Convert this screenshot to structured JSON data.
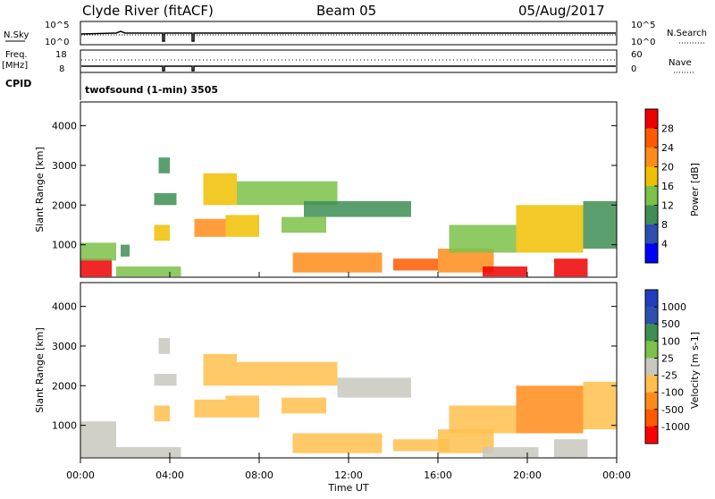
{
  "header": {
    "station": "Clyde River (fitACF)",
    "beam": "Beam 05",
    "date": "05/Aug/2017"
  },
  "top_panels": {
    "nsky_label": "N.Sky",
    "nsearch_label": "N.Search",
    "nsky_ticks": [
      "10^5",
      "10^0"
    ],
    "nsearch_ticks": [
      "10^5",
      "10^0"
    ],
    "freq_label_1": "Freq.",
    "freq_label_2": "[MHz]",
    "freq_ticks": [
      "18",
      "8"
    ],
    "nave_label": "Nave",
    "nave_ticks": [
      "60",
      "0"
    ],
    "cpid_label": "CPID",
    "cpid_text": "twofsound (1-min) 3505"
  },
  "chart_data": [
    {
      "type": "heatmap",
      "name": "power",
      "ylabel": "Slant Range [km]",
      "xlabel": "Time UT",
      "ylim": [
        180,
        4600
      ],
      "xlim": [
        0,
        24
      ],
      "yticks": [
        "1000",
        "2000",
        "3000",
        "4000"
      ],
      "xticks": [
        "00:00",
        "04:00",
        "08:00",
        "12:00",
        "16:00",
        "20:00",
        "00:00"
      ],
      "colorbar_label": "Power [dB]",
      "colorbar_ticks": [
        "4",
        "8",
        "12",
        "16",
        "20",
        "24",
        "28"
      ],
      "colorbar_range": [
        0,
        30
      ],
      "colors": [
        "#0000ff",
        "#2c4fb0",
        "#3f8e55",
        "#7bc14a",
        "#f0c000",
        "#ff8c1a",
        "#ff5a00",
        "#ee0000"
      ],
      "patches": [
        {
          "t0": 0.0,
          "t1": 1.4,
          "r0": 200,
          "r1": 650,
          "v": 28
        },
        {
          "t0": 0.0,
          "t1": 1.6,
          "r0": 600,
          "r1": 1050,
          "v": 14
        },
        {
          "t0": 1.6,
          "t1": 4.5,
          "r0": 200,
          "r1": 450,
          "v": 14
        },
        {
          "t0": 1.8,
          "t1": 2.2,
          "r0": 700,
          "r1": 1000,
          "v": 8
        },
        {
          "t0": 3.3,
          "t1": 4.0,
          "r0": 1100,
          "r1": 1500,
          "v": 18
        },
        {
          "t0": 3.3,
          "t1": 4.3,
          "r0": 2000,
          "r1": 2300,
          "v": 8
        },
        {
          "t0": 3.5,
          "t1": 4.0,
          "r0": 2800,
          "r1": 3200,
          "v": 10
        },
        {
          "t0": 5.1,
          "t1": 6.5,
          "r0": 1200,
          "r1": 1650,
          "v": 20
        },
        {
          "t0": 5.5,
          "t1": 7.0,
          "r0": 2000,
          "r1": 2800,
          "v": 16
        },
        {
          "t0": 6.5,
          "t1": 8.0,
          "r0": 1200,
          "r1": 1750,
          "v": 18
        },
        {
          "t0": 7.0,
          "t1": 11.5,
          "r0": 2000,
          "r1": 2600,
          "v": 12
        },
        {
          "t0": 9.0,
          "t1": 11.0,
          "r0": 1300,
          "r1": 1700,
          "v": 14
        },
        {
          "t0": 10.0,
          "t1": 14.8,
          "r0": 1700,
          "r1": 2100,
          "v": 8
        },
        {
          "t0": 9.5,
          "t1": 13.5,
          "r0": 300,
          "r1": 800,
          "v": 20
        },
        {
          "t0": 14.0,
          "t1": 16.0,
          "r0": 350,
          "r1": 650,
          "v": 24
        },
        {
          "t0": 16.0,
          "t1": 18.5,
          "r0": 300,
          "r1": 900,
          "v": 22
        },
        {
          "t0": 16.5,
          "t1": 19.5,
          "r0": 800,
          "r1": 1500,
          "v": 14
        },
        {
          "t0": 18.0,
          "t1": 20.0,
          "r0": 200,
          "r1": 450,
          "v": 28
        },
        {
          "t0": 19.5,
          "t1": 22.5,
          "r0": 800,
          "r1": 2000,
          "v": 16
        },
        {
          "t0": 21.2,
          "t1": 22.7,
          "r0": 200,
          "r1": 650,
          "v": 28
        },
        {
          "t0": 22.5,
          "t1": 24.0,
          "r0": 900,
          "r1": 2100,
          "v": 10
        }
      ]
    },
    {
      "type": "heatmap",
      "name": "velocity",
      "ylabel": "Slant Range [km]",
      "xlabel": "Time UT",
      "ylim": [
        180,
        4600
      ],
      "xlim": [
        0,
        24
      ],
      "yticks": [
        "1000",
        "2000",
        "3000",
        "4000"
      ],
      "xticks": [
        "00:00",
        "04:00",
        "08:00",
        "12:00",
        "16:00",
        "20:00",
        "00:00"
      ],
      "colorbar_label": "Velocity [m s-1]",
      "colorbar_ticks": [
        "1000",
        "500",
        "100",
        "25",
        "-25",
        "-100",
        "-500",
        "-1000"
      ],
      "colorbar_range": [
        -1200,
        1200
      ],
      "colors": [
        "#ff0000",
        "#ff5a00",
        "#ff8c1a",
        "#ffc04d",
        "#c8c8c0",
        "#7bc14a",
        "#3f8e55",
        "#2c4fb0",
        "#1f3fbf"
      ],
      "patches": [
        {
          "t0": 0.0,
          "t1": 1.6,
          "r0": 200,
          "r1": 1100,
          "v": 0
        },
        {
          "t0": 1.6,
          "t1": 4.5,
          "r0": 200,
          "r1": 450,
          "v": 60
        },
        {
          "t0": 3.3,
          "t1": 4.0,
          "r0": 1100,
          "r1": 1500,
          "v": -300
        },
        {
          "t0": 3.3,
          "t1": 4.3,
          "r0": 2000,
          "r1": 2300,
          "v": 0
        },
        {
          "t0": 3.5,
          "t1": 4.0,
          "r0": 2800,
          "r1": 3200,
          "v": -60
        },
        {
          "t0": 5.1,
          "t1": 6.5,
          "r0": 1200,
          "r1": 1650,
          "v": -400
        },
        {
          "t0": 5.5,
          "t1": 7.0,
          "r0": 2000,
          "r1": 2800,
          "v": -300
        },
        {
          "t0": 6.5,
          "t1": 8.0,
          "r0": 1200,
          "r1": 1750,
          "v": -400
        },
        {
          "t0": 7.0,
          "t1": 11.5,
          "r0": 2000,
          "r1": 2600,
          "v": -300
        },
        {
          "t0": 9.0,
          "t1": 11.0,
          "r0": 1300,
          "r1": 1700,
          "v": -400
        },
        {
          "t0": 11.5,
          "t1": 14.8,
          "r0": 1700,
          "r1": 2200,
          "v": 0
        },
        {
          "t0": 9.5,
          "t1": 13.5,
          "r0": 300,
          "r1": 800,
          "v": -300
        },
        {
          "t0": 14.0,
          "t1": 16.5,
          "r0": 350,
          "r1": 650,
          "v": -200
        },
        {
          "t0": 16.0,
          "t1": 18.5,
          "r0": 300,
          "r1": 900,
          "v": -300
        },
        {
          "t0": 16.5,
          "t1": 19.5,
          "r0": 800,
          "r1": 1500,
          "v": -400
        },
        {
          "t0": 18.0,
          "t1": 20.5,
          "r0": 200,
          "r1": 450,
          "v": 60
        },
        {
          "t0": 19.5,
          "t1": 22.5,
          "r0": 800,
          "r1": 2000,
          "v": -450
        },
        {
          "t0": 21.2,
          "t1": 22.7,
          "r0": 200,
          "r1": 650,
          "v": 0
        },
        {
          "t0": 22.5,
          "t1": 24.0,
          "r0": 900,
          "r1": 2100,
          "v": -150
        }
      ]
    }
  ]
}
